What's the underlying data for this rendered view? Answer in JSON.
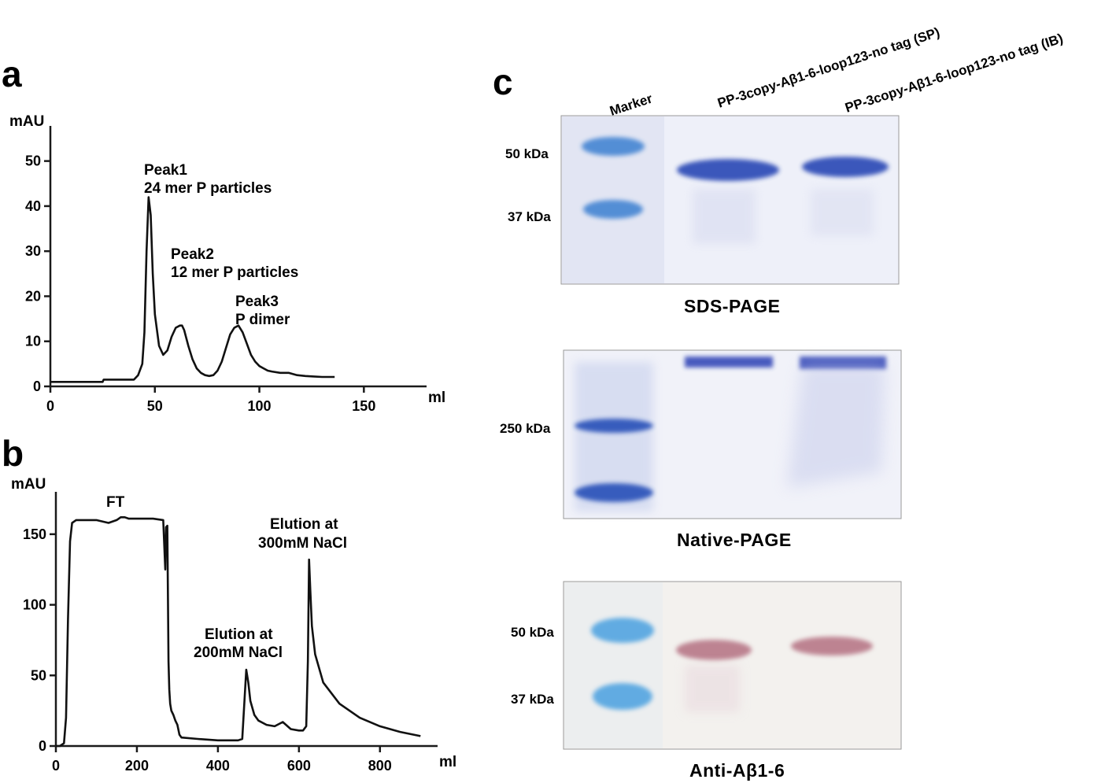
{
  "panel_a": {
    "letter": "a",
    "ylabel": "mAU",
    "xlabel": "ml",
    "yticks": [
      "0",
      "10",
      "20",
      "30",
      "40",
      "50"
    ],
    "xticks": [
      "0",
      "50",
      "100",
      "150"
    ],
    "annotations": [
      {
        "line1": "Peak1",
        "line2": "24 mer P particles"
      },
      {
        "line1": "Peak2",
        "line2": "12 mer P particles"
      },
      {
        "line1": "Peak3",
        "line2": "P dimer"
      }
    ]
  },
  "panel_b": {
    "letter": "b",
    "ylabel": "mAU",
    "xlabel": "ml",
    "yticks": [
      "0",
      "50",
      "100",
      "150"
    ],
    "xticks": [
      "0",
      "200",
      "400",
      "600",
      "800"
    ],
    "annotations": [
      {
        "line1": "FT",
        "line2": ""
      },
      {
        "line1": "Elution at",
        "line2": "200mM NaCl"
      },
      {
        "line1": "Elution at",
        "line2": "300mM NaCl"
      }
    ]
  },
  "panel_c": {
    "letter": "c",
    "lanes": [
      "Marker",
      "PP-3copy-Aβ1-6-loop123-no tag (SP)",
      "PP-3copy-Aβ1-6-loop123-no tag (IB)"
    ],
    "gels": [
      {
        "title": "SDS-PAGE",
        "markers": [
          "50 kDa",
          "37 kDa"
        ],
        "colors": {
          "background": "#eef0f9",
          "marker_band": "#3a7fd0",
          "band": "#3050b8"
        }
      },
      {
        "title": "Native-PAGE",
        "markers": [
          "250 kDa"
        ],
        "colors": {
          "background": "#f1f2f9",
          "marker_band": "#2550b8",
          "band": "#3448b8"
        }
      },
      {
        "title": "Anti-Aβ1-6",
        "markers": [
          "50 kDa",
          "37 kDa"
        ],
        "colors": {
          "background": "#f3f1ee",
          "marker_band": "#4aa0e0",
          "band": "#b87888"
        }
      }
    ]
  },
  "chart_data": [
    {
      "type": "line",
      "title": "",
      "xlabel": "ml",
      "ylabel": "mAU",
      "xlim": [
        0,
        180
      ],
      "ylim": [
        0,
        55
      ],
      "series": [
        {
          "x": [
            0,
            25,
            25.5,
            40,
            42,
            44,
            45,
            46,
            47,
            48,
            49,
            50,
            52,
            54,
            56,
            58,
            60,
            62,
            63,
            64,
            66,
            68,
            70,
            72,
            74,
            76,
            78,
            80,
            82,
            84,
            86,
            88,
            90,
            92,
            94,
            96,
            98,
            100,
            102,
            104,
            106,
            110,
            114,
            118,
            122,
            126,
            130,
            136
          ],
          "y": [
            1,
            1,
            1.5,
            1.5,
            2.5,
            5,
            12,
            30,
            42,
            38,
            25,
            16,
            9,
            7,
            8,
            11,
            13,
            13.5,
            13.5,
            12.5,
            9,
            6,
            4,
            3,
            2.5,
            2.3,
            2.5,
            3.5,
            5.5,
            8.5,
            11.5,
            13,
            13.5,
            12,
            9.5,
            7,
            5.5,
            4.5,
            4,
            3.5,
            3.3,
            3,
            3,
            2.5,
            2.3,
            2.2,
            2.1,
            2.1
          ]
        }
      ]
    },
    {
      "type": "line",
      "title": "",
      "xlabel": "ml",
      "ylabel": "mAU",
      "xlim": [
        0,
        950
      ],
      "ylim": [
        0,
        180
      ],
      "series": [
        {
          "x": [
            0,
            10,
            20,
            25,
            30,
            35,
            40,
            45,
            50,
            100,
            130,
            150,
            160,
            170,
            180,
            200,
            240,
            265,
            270,
            272,
            275,
            278,
            280,
            282,
            285,
            290,
            295,
            300,
            305,
            310,
            350,
            400,
            450,
            460,
            465,
            470,
            475,
            480,
            490,
            500,
            520,
            540,
            560,
            580,
            600,
            610,
            618,
            622,
            625,
            628,
            632,
            640,
            660,
            700,
            750,
            800,
            850,
            900
          ],
          "y": [
            0,
            0,
            2,
            20,
            90,
            145,
            158,
            159,
            160,
            160,
            158,
            160,
            162,
            162,
            161,
            161,
            161,
            160,
            125,
            155,
            156,
            60,
            40,
            30,
            25,
            22,
            18,
            15,
            8,
            6,
            5,
            4,
            4,
            5,
            30,
            54,
            45,
            32,
            22,
            18,
            15,
            14,
            17,
            12,
            11,
            11,
            14,
            60,
            132,
            110,
            85,
            65,
            45,
            30,
            20,
            14,
            10,
            7
          ]
        }
      ]
    }
  ]
}
